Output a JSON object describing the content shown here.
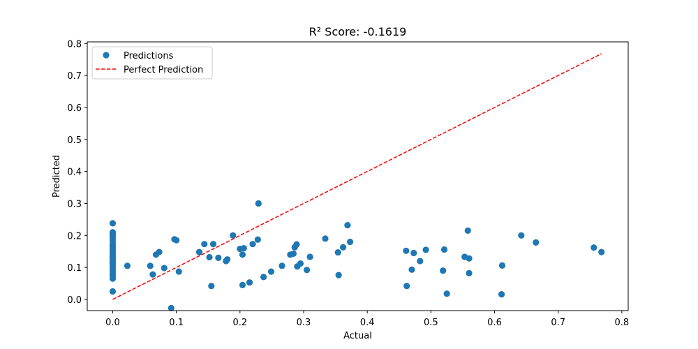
{
  "chart_data": {
    "type": "scatter",
    "title": "R² Score: -0.1619",
    "xlabel": "Actual",
    "ylabel": "Predicted",
    "xlim": [
      -0.04,
      0.81
    ],
    "ylim": [
      -0.035,
      0.805
    ],
    "xticks": [
      0.0,
      0.1,
      0.2,
      0.3,
      0.4,
      0.5,
      0.6,
      0.7,
      0.8
    ],
    "xtick_labels": [
      "0.0",
      "0.1",
      "0.2",
      "0.3",
      "0.4",
      "0.5",
      "0.6",
      "0.7",
      "0.8"
    ],
    "yticks": [
      0.0,
      0.1,
      0.2,
      0.3,
      0.4,
      0.5,
      0.6,
      0.7,
      0.8
    ],
    "ytick_labels": [
      "0.0",
      "0.1",
      "0.2",
      "0.3",
      "0.4",
      "0.5",
      "0.6",
      "0.7",
      "0.8"
    ],
    "grid": false,
    "legend_position": "top-left",
    "series": [
      {
        "name": "Predictions",
        "kind": "scatter",
        "color": "#1f77b4",
        "points": [
          [
            0.0,
            0.238
          ],
          [
            0.0,
            0.21
          ],
          [
            0.0,
            0.205
          ],
          [
            0.0,
            0.198
          ],
          [
            0.0,
            0.19
          ],
          [
            0.0,
            0.182
          ],
          [
            0.0,
            0.172
          ],
          [
            0.0,
            0.165
          ],
          [
            0.0,
            0.158
          ],
          [
            0.0,
            0.15
          ],
          [
            0.0,
            0.143
          ],
          [
            0.0,
            0.135
          ],
          [
            0.0,
            0.128
          ],
          [
            0.0,
            0.12
          ],
          [
            0.0,
            0.113
          ],
          [
            0.0,
            0.105
          ],
          [
            0.0,
            0.097
          ],
          [
            0.0,
            0.09
          ],
          [
            0.0,
            0.082
          ],
          [
            0.0,
            0.075
          ],
          [
            0.0,
            0.065
          ],
          [
            0.0,
            0.025
          ],
          [
            0.023,
            0.105
          ],
          [
            0.059,
            0.105
          ],
          [
            0.063,
            0.078
          ],
          [
            0.068,
            0.14
          ],
          [
            0.073,
            0.148
          ],
          [
            0.081,
            0.098
          ],
          [
            0.092,
            -0.027
          ],
          [
            0.097,
            0.188
          ],
          [
            0.1,
            0.185
          ],
          [
            0.104,
            0.087
          ],
          [
            0.136,
            0.148
          ],
          [
            0.144,
            0.173
          ],
          [
            0.152,
            0.132
          ],
          [
            0.155,
            0.042
          ],
          [
            0.158,
            0.173
          ],
          [
            0.166,
            0.13
          ],
          [
            0.178,
            0.12
          ],
          [
            0.18,
            0.125
          ],
          [
            0.189,
            0.2
          ],
          [
            0.2,
            0.158
          ],
          [
            0.204,
            0.14
          ],
          [
            0.204,
            0.045
          ],
          [
            0.206,
            0.16
          ],
          [
            0.215,
            0.053
          ],
          [
            0.22,
            0.173
          ],
          [
            0.228,
            0.187
          ],
          [
            0.229,
            0.3
          ],
          [
            0.237,
            0.07
          ],
          [
            0.249,
            0.087
          ],
          [
            0.266,
            0.105
          ],
          [
            0.279,
            0.14
          ],
          [
            0.284,
            0.143
          ],
          [
            0.286,
            0.163
          ],
          [
            0.289,
            0.172
          ],
          [
            0.29,
            0.103
          ],
          [
            0.295,
            0.112
          ],
          [
            0.305,
            0.092
          ],
          [
            0.31,
            0.133
          ],
          [
            0.334,
            0.19
          ],
          [
            0.354,
            0.147
          ],
          [
            0.355,
            0.076
          ],
          [
            0.362,
            0.163
          ],
          [
            0.369,
            0.232
          ],
          [
            0.373,
            0.18
          ],
          [
            0.461,
            0.152
          ],
          [
            0.462,
            0.042
          ],
          [
            0.47,
            0.093
          ],
          [
            0.473,
            0.145
          ],
          [
            0.483,
            0.12
          ],
          [
            0.492,
            0.155
          ],
          [
            0.519,
            0.09
          ],
          [
            0.521,
            0.156
          ],
          [
            0.525,
            0.018
          ],
          [
            0.553,
            0.133
          ],
          [
            0.558,
            0.215
          ],
          [
            0.56,
            0.128
          ],
          [
            0.56,
            0.082
          ],
          [
            0.611,
            0.016
          ],
          [
            0.612,
            0.106
          ],
          [
            0.642,
            0.2
          ],
          [
            0.665,
            0.178
          ],
          [
            0.756,
            0.162
          ],
          [
            0.768,
            0.148
          ]
        ]
      },
      {
        "name": "Perfect Prediction",
        "kind": "line",
        "style": "dashed",
        "color": "#ff0000",
        "x": [
          0.0,
          0.768
        ],
        "y": [
          0.0,
          0.768
        ]
      }
    ]
  }
}
